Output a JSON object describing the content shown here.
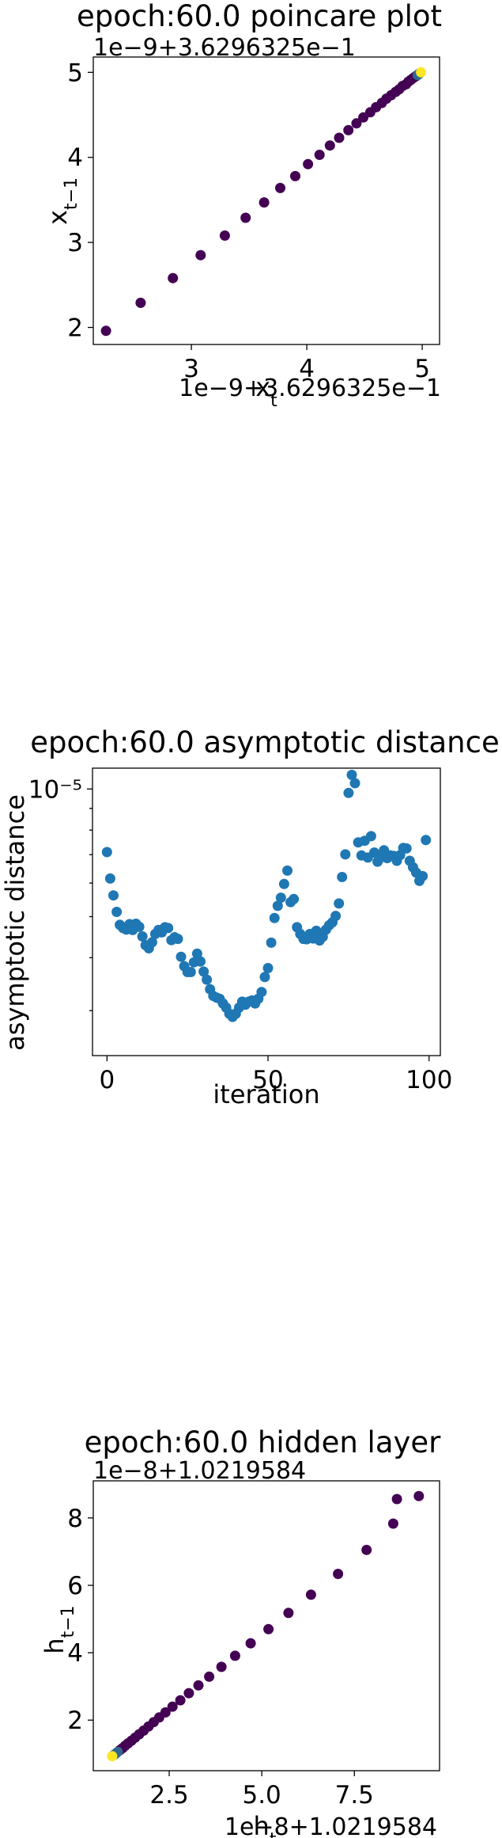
{
  "colors": {
    "viridis": [
      "#440154",
      "#482878",
      "#3e4989",
      "#31688e",
      "#26828e",
      "#1f9e89",
      "#35b779",
      "#6ece58",
      "#b5de2b",
      "#fde725"
    ],
    "scatter_blue": "#1f77b4"
  },
  "chart_data": [
    {
      "id": "poincare",
      "type": "scatter",
      "title": "epoch:60.0 poincare plot",
      "y_offset_text": "1e−9+3.6296325e−1",
      "x_offset_text": "1e−9+3.6296325e−1",
      "xlabel": "x_t",
      "ylabel": "x_{t−1}",
      "xlim": [
        2.15,
        5.15
      ],
      "ylim": [
        1.8,
        5.18
      ],
      "xticks": [
        {
          "v": 3,
          "label": "3"
        },
        {
          "v": 4,
          "label": "4"
        },
        {
          "v": 5,
          "label": "5"
        }
      ],
      "yticks": [
        {
          "v": 2,
          "label": "2"
        },
        {
          "v": 3,
          "label": "3"
        },
        {
          "v": 4,
          "label": "4"
        },
        {
          "v": 5,
          "label": "5"
        }
      ],
      "colormap": "viridis",
      "grid": false,
      "x": [
        2.26,
        2.56,
        2.84,
        3.08,
        3.29,
        3.47,
        3.63,
        3.77,
        3.9,
        4.01,
        4.11,
        4.2,
        4.28,
        4.36,
        4.43,
        4.49,
        4.55,
        4.6,
        4.65,
        4.69,
        4.73,
        4.77,
        4.8,
        4.83,
        4.86,
        4.88,
        4.9,
        4.92,
        4.94,
        4.95,
        4.96,
        4.97,
        4.98,
        4.99
      ],
      "y": [
        1.96,
        2.29,
        2.58,
        2.85,
        3.08,
        3.29,
        3.47,
        3.64,
        3.78,
        3.92,
        4.03,
        4.14,
        4.23,
        4.32,
        4.4,
        4.47,
        4.53,
        4.59,
        4.64,
        4.69,
        4.73,
        4.77,
        4.8,
        4.84,
        4.86,
        4.89,
        4.91,
        4.93,
        4.95,
        4.96,
        4.97,
        4.98,
        4.99,
        5.0
      ]
    },
    {
      "id": "asymptotic",
      "type": "scatter",
      "title": "epoch:60.0 asymptotic distance",
      "xlabel": "iteration",
      "ylabel": "asymptotic distance",
      "yscale": "log",
      "xlim": [
        -4.5,
        103.5
      ],
      "ylim": [
        2.35e-06,
        1.12e-05
      ],
      "xticks": [
        {
          "v": 0,
          "label": "0"
        },
        {
          "v": 50,
          "label": "50"
        },
        {
          "v": 100,
          "label": "100"
        }
      ],
      "yticks": [
        {
          "v": 1e-05,
          "label": "10⁻⁵"
        }
      ],
      "color_key": "scatter_blue",
      "grid": false,
      "x": [
        0,
        1,
        2,
        3,
        4,
        5,
        6,
        7,
        8,
        9,
        10,
        11,
        12,
        13,
        14,
        15,
        16,
        17,
        18,
        19,
        20,
        21,
        22,
        23,
        24,
        25,
        26,
        27,
        28,
        29,
        30,
        31,
        32,
        33,
        34,
        35,
        36,
        37,
        38,
        39,
        40,
        41,
        42,
        43,
        44,
        45,
        46,
        47,
        48,
        49,
        50,
        51,
        52,
        53,
        54,
        55,
        56,
        57,
        58,
        59,
        60,
        61,
        62,
        63,
        64,
        65,
        66,
        67,
        68,
        69,
        70,
        71,
        72,
        73,
        74,
        75,
        76,
        77,
        78,
        79,
        80,
        81,
        82,
        83,
        84,
        85,
        86,
        87,
        88,
        89,
        90,
        91,
        92,
        93,
        94,
        95,
        96,
        97,
        98,
        99
      ],
      "y": [
        7.1e-06,
        6.15e-06,
        5.61e-06,
        5.13e-06,
        4.78e-06,
        4.7e-06,
        4.66e-06,
        4.8e-06,
        4.65e-06,
        4.81e-06,
        4.73e-06,
        4.49e-06,
        4.28e-06,
        4.21e-06,
        4.35e-06,
        4.55e-06,
        4.65e-06,
        4.59e-06,
        4.72e-06,
        4.7e-06,
        4.4e-06,
        4.47e-06,
        4.43e-06,
        4.02e-06,
        3.82e-06,
        3.7e-06,
        3.7e-06,
        3.9e-06,
        4.09e-06,
        3.92e-06,
        3.71e-06,
        3.55e-06,
        3.37e-06,
        3.25e-06,
        3.22e-06,
        3.2e-06,
        3.12e-06,
        3.05e-06,
        2.95e-06,
        2.9e-06,
        2.95e-06,
        3.05e-06,
        3.15e-06,
        3.1e-06,
        3.15e-06,
        3.17e-06,
        3.12e-06,
        3.2e-06,
        3.32e-06,
        3.6e-06,
        3.78e-06,
        4.34e-06,
        4.96e-06,
        5.3e-06,
        5.54e-06,
        5.97e-06,
        6.42e-06,
        5.41e-06,
        5.5e-06,
        4.72e-06,
        4.55e-06,
        4.43e-06,
        4.42e-06,
        4.55e-06,
        4.44e-06,
        4.63e-06,
        4.39e-06,
        4.48e-06,
        4.66e-06,
        4.77e-06,
        4.85e-06,
        5.02e-06,
        5.37e-06,
        6.2e-06,
        7.01e-06,
        9.79e-06,
        1.08e-05,
        1.032e-05,
        7.48e-06,
        6.97e-06,
        7.55e-06,
        6.89e-06,
        7.74e-06,
        7.08e-06,
        6.74e-06,
        6.89e-06,
        7.17e-06,
        6.87e-06,
        6.97e-06,
        6.95e-06,
        6.77e-06,
        6.98e-06,
        7.26e-06,
        7.24e-06,
        6.77e-06,
        6.54e-06,
        6.35e-06,
        6.07e-06,
        6.23e-06,
        7.58e-06
      ]
    },
    {
      "id": "hidden",
      "type": "scatter",
      "title": "epoch:60.0 hidden layer",
      "y_offset_text": "1e−8+1.0219584",
      "x_offset_text": "1e−8+1.0219584",
      "xlabel": "h_t",
      "ylabel": "h_{t−1}",
      "xlim": [
        0.45,
        9.8
      ],
      "ylim": [
        0.5,
        9.1
      ],
      "xticks": [
        {
          "v": 2.5,
          "label": "2.5"
        },
        {
          "v": 5.0,
          "label": "5.0"
        },
        {
          "v": 7.5,
          "label": "7.5"
        }
      ],
      "yticks": [
        {
          "v": 2,
          "label": "2"
        },
        {
          "v": 4,
          "label": "4"
        },
        {
          "v": 6,
          "label": "6"
        },
        {
          "v": 8,
          "label": "8"
        }
      ],
      "colormap": "viridis",
      "grid": false,
      "x": [
        9.24,
        8.65,
        8.55,
        7.83,
        7.06,
        6.33,
        5.72,
        5.18,
        4.7,
        4.28,
        3.91,
        3.58,
        3.29,
        3.03,
        2.8,
        2.59,
        2.4,
        2.23,
        2.08,
        1.94,
        1.81,
        1.69,
        1.58,
        1.48,
        1.39,
        1.31,
        1.24,
        1.17,
        1.11,
        1.06,
        1.01,
        0.96
      ],
      "y": [
        8.65,
        8.56,
        7.83,
        7.05,
        6.34,
        5.72,
        5.18,
        4.7,
        4.28,
        3.91,
        3.58,
        3.29,
        3.03,
        2.8,
        2.59,
        2.4,
        2.23,
        2.08,
        1.94,
        1.81,
        1.69,
        1.58,
        1.48,
        1.39,
        1.31,
        1.24,
        1.17,
        1.11,
        1.06,
        1.01,
        0.97,
        0.93
      ]
    }
  ]
}
